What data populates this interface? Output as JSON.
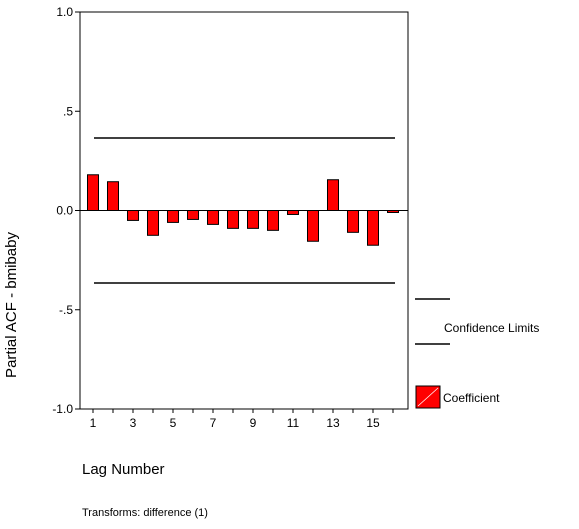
{
  "chart_data": {
    "type": "bar",
    "ylabel": "Partial ACF - bmibaby",
    "xlabel": "Lag Number",
    "ylim": [
      -1.0,
      1.0
    ],
    "y_ticks": [
      {
        "value": 1.0,
        "label": "1.0"
      },
      {
        "value": 0.5,
        "label": ".5"
      },
      {
        "value": 0.0,
        "label": "0.0"
      },
      {
        "value": -0.5,
        "label": "-.5"
      },
      {
        "value": -1.0,
        "label": "-1.0"
      }
    ],
    "categories": [
      1,
      2,
      3,
      4,
      5,
      6,
      7,
      8,
      9,
      10,
      11,
      12,
      13,
      14,
      15,
      16
    ],
    "x_tick_labels": [
      "1",
      "",
      "3",
      "",
      "5",
      "",
      "7",
      "",
      "9",
      "",
      "11",
      "",
      "13",
      "",
      "15",
      ""
    ],
    "series": [
      {
        "name": "Coefficient",
        "color": "#ff0000",
        "values": [
          0.18,
          0.145,
          -0.05,
          -0.125,
          -0.06,
          -0.045,
          -0.07,
          -0.09,
          -0.09,
          -0.1,
          -0.02,
          -0.155,
          0.155,
          -0.11,
          -0.175,
          -0.01
        ]
      }
    ],
    "confidence_limits": {
      "name": "Confidence Limits",
      "upper": 0.365,
      "lower": -0.365
    },
    "legend": {
      "position": "right",
      "confidence_label": "Confidence Limits",
      "coefficient_label": "Coefficient"
    },
    "footnote": "Transforms: difference (1)",
    "grid": false
  }
}
